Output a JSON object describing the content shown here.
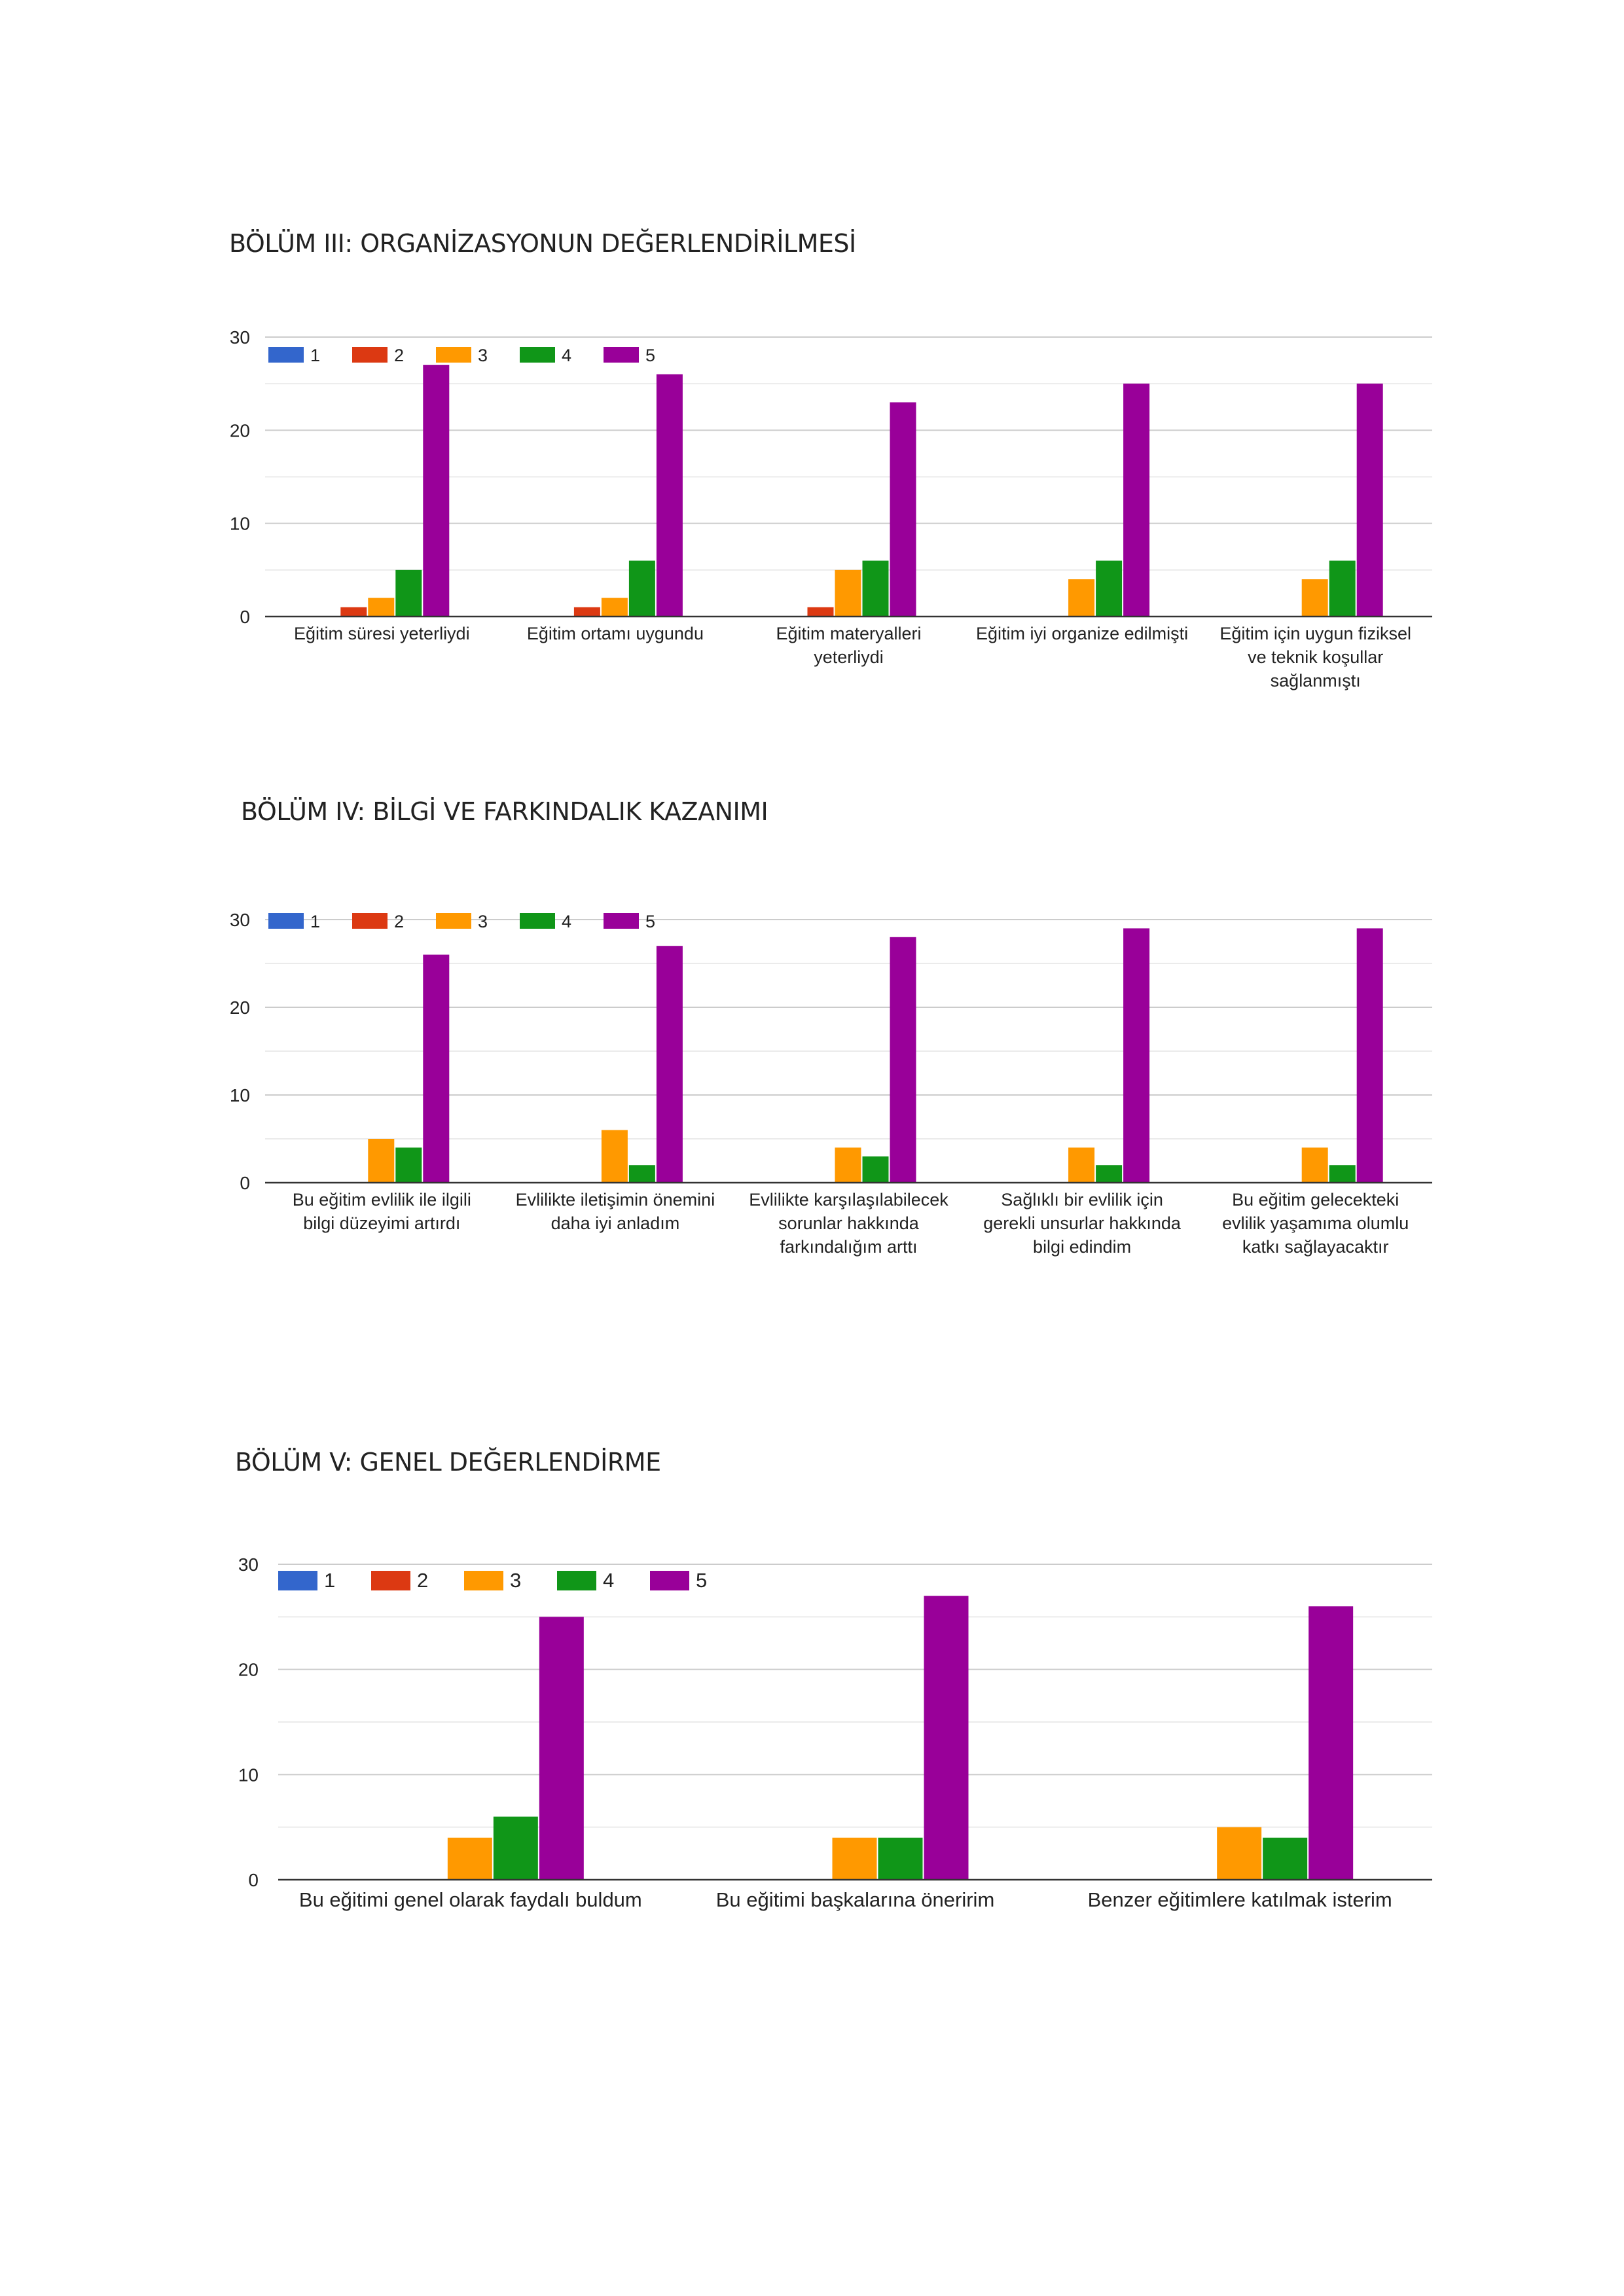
{
  "colors": {
    "1": "#3366cc",
    "2": "#dc3912",
    "3": "#ff9900",
    "4": "#109618",
    "5": "#990099",
    "grid": "#cccccc",
    "minor_grid": "#ebebeb",
    "axis": "#333333"
  },
  "sections": [
    {
      "title": "BÖLÜM III: ORGANİZASYONUN DEĞERLENDİRİLMESİ"
    },
    {
      "title": "BÖLÜM IV: BİLGİ VE FARKINDALIK KAZANIMI"
    },
    {
      "title": "BÖLÜM V: GENEL DEĞERLENDİRME"
    }
  ],
  "chart_data": [
    {
      "type": "bar",
      "title": "BÖLÜM III: ORGANİZASYONUN DEĞERLENDİRİLMESİ",
      "categories": [
        [
          "Eğitim süresi yeterliydi"
        ],
        [
          "Eğitim ortamı uygundu"
        ],
        [
          "Eğitim materyalleri",
          "yeterliydi"
        ],
        [
          "Eğitim iyi organize edilmişti"
        ],
        [
          "Eğitim için uygun fiziksel",
          "ve teknik koşullar",
          "sağlanmıştı"
        ]
      ],
      "series": [
        {
          "name": "1",
          "values": [
            0,
            0,
            0,
            0,
            0
          ]
        },
        {
          "name": "2",
          "values": [
            1,
            1,
            1,
            0,
            0
          ]
        },
        {
          "name": "3",
          "values": [
            2,
            2,
            5,
            4,
            4
          ]
        },
        {
          "name": "4",
          "values": [
            5,
            6,
            6,
            6,
            6
          ]
        },
        {
          "name": "5",
          "values": [
            27,
            26,
            23,
            25,
            25
          ]
        }
      ],
      "yticks": [
        0,
        10,
        20,
        30
      ],
      "ylim": [
        0,
        30
      ],
      "legend": "top-left"
    },
    {
      "type": "bar",
      "title": "BÖLÜM IV: BİLGİ VE FARKINDALIK KAZANIMI",
      "categories": [
        [
          "Bu eğitim evlilik ile ilgili",
          "bilgi düzeyimi artırdı"
        ],
        [
          "Evlilikte iletişimin önemini",
          "daha iyi anladım"
        ],
        [
          "Evlilikte karşılaşılabilecek",
          "sorunlar hakkında",
          "farkındalığım arttı"
        ],
        [
          "Sağlıklı bir evlilik için",
          "gerekli unsurlar hakkında",
          "bilgi edindim"
        ],
        [
          "Bu eğitim gelecekteki",
          "evlilik yaşamıma olumlu",
          "katkı sağlayacaktır"
        ]
      ],
      "series": [
        {
          "name": "1",
          "values": [
            0,
            0,
            0,
            0,
            0
          ]
        },
        {
          "name": "2",
          "values": [
            0,
            0,
            0,
            0,
            0
          ]
        },
        {
          "name": "3",
          "values": [
            5,
            6,
            4,
            4,
            4
          ]
        },
        {
          "name": "4",
          "values": [
            4,
            2,
            3,
            2,
            2
          ]
        },
        {
          "name": "5",
          "values": [
            26,
            27,
            28,
            29,
            29
          ]
        }
      ],
      "yticks": [
        0,
        10,
        20,
        30
      ],
      "ylim": [
        0,
        30
      ],
      "legend": "top-left"
    },
    {
      "type": "bar",
      "title": "BÖLÜM V: GENEL DEĞERLENDİRME",
      "categories": [
        [
          "Bu eğitimi genel olarak faydalı buldum"
        ],
        [
          "Bu eğitimi başkalarına öneririm"
        ],
        [
          "Benzer eğitimlere katılmak isterim"
        ]
      ],
      "series": [
        {
          "name": "1",
          "values": [
            0,
            0,
            0
          ]
        },
        {
          "name": "2",
          "values": [
            0,
            0,
            0
          ]
        },
        {
          "name": "3",
          "values": [
            4,
            4,
            5
          ]
        },
        {
          "name": "4",
          "values": [
            6,
            4,
            4
          ]
        },
        {
          "name": "5",
          "values": [
            25,
            27,
            26
          ]
        }
      ],
      "yticks": [
        0,
        10,
        20,
        30
      ],
      "ylim": [
        0,
        30
      ],
      "legend": "top-left"
    }
  ]
}
